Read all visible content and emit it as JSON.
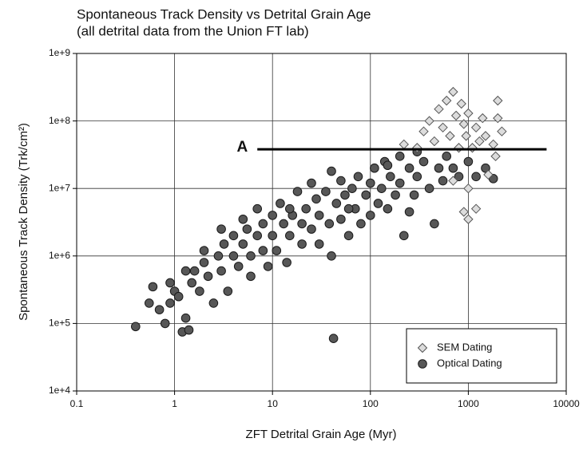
{
  "chart_data": {
    "type": "scatter",
    "title": "Spontaneous Track Density vs Detrital Grain Age",
    "subtitle": "(all detrital data from the Union FT lab)",
    "x_label": "ZFT Detrital Grain Age (Myr)",
    "y_label": "Spontaneous Track Density (Trk/cm²)",
    "xscale": "log",
    "yscale": "log",
    "grid": true,
    "legend": "lower right",
    "xlim": [
      0.1,
      10000
    ],
    "xticks": [
      0.1,
      1,
      10,
      100,
      1000,
      10000
    ],
    "ylim": [
      10000,
      1000000000
    ],
    "yticks": [
      {
        "value": 10000,
        "label": "1e+4"
      },
      {
        "value": 100000,
        "label": "1e+5"
      },
      {
        "value": 1000000,
        "label": "1e+6"
      },
      {
        "value": 10000000,
        "label": "1e+7"
      },
      {
        "value": 100000000,
        "label": "1e+8"
      },
      {
        "value": 1000000000,
        "label": "1e+9"
      }
    ],
    "annotations": [
      {
        "text": "A",
        "x": [
          7,
          6300
        ],
        "y": 38000000
      }
    ],
    "series": [
      {
        "name": "SEM Dating",
        "color": "#dcdcdc",
        "marker": "diamond",
        "x": [
          300,
          350,
          400,
          450,
          500,
          550,
          600,
          650,
          700,
          750,
          800,
          850,
          900,
          950,
          1000,
          1100,
          1200,
          1300,
          1400,
          1500,
          1800,
          2000,
          2200,
          1000,
          900,
          1000,
          1200,
          700,
          1600,
          1900,
          220,
          2000
        ],
        "values": [
          40000000,
          70000000,
          100000000,
          50000000,
          150000000,
          80000000,
          200000000,
          60000000,
          270000000,
          120000000,
          40000000,
          180000000,
          90000000,
          60000000,
          130000000,
          40000000,
          80000000,
          50000000,
          110000000,
          60000000,
          45000000,
          110000000,
          70000000,
          10000000,
          4500000,
          3500000,
          5000000,
          13000000,
          16000000,
          30000000,
          45000000,
          200000000
        ]
      },
      {
        "name": "Optical Dating",
        "color": "#575757",
        "marker": "circle",
        "x": [
          0.4,
          0.55,
          0.6,
          0.7,
          0.8,
          0.9,
          1.0,
          1.1,
          1.2,
          1.3,
          1.4,
          1.5,
          1.6,
          1.8,
          2.0,
          2.2,
          2.5,
          2.8,
          3,
          3.2,
          3.5,
          4,
          4,
          4.5,
          5,
          5.5,
          6,
          6,
          7,
          7,
          8,
          8,
          9,
          10,
          10,
          11,
          12,
          13,
          14,
          15,
          16,
          18,
          20,
          20,
          22,
          25,
          25,
          28,
          30,
          30,
          35,
          38,
          40,
          42,
          45,
          50,
          50,
          55,
          60,
          65,
          70,
          75,
          80,
          90,
          100,
          100,
          110,
          120,
          130,
          140,
          150,
          160,
          180,
          200,
          200,
          220,
          250,
          280,
          300,
          300,
          350,
          400,
          450,
          500,
          550,
          600,
          700,
          800,
          1000,
          1200,
          1500,
          1800,
          2,
          3,
          5,
          15,
          40,
          60,
          150,
          250,
          0.9,
          1.3
        ],
        "values": [
          90000,
          200000,
          350000,
          160000,
          100000,
          200000,
          300000,
          250000,
          75000,
          120000,
          80000,
          400000,
          600000,
          300000,
          800000,
          500000,
          200000,
          1000000,
          600000,
          1500000,
          300000,
          1000000,
          2000000,
          700000,
          1500000,
          2500000,
          500000,
          1000000,
          5000000,
          2000000,
          1200000,
          3000000,
          700000,
          2000000,
          4000000,
          1200000,
          6000000,
          3000000,
          800000,
          2000000,
          4000000,
          9000000,
          1500000,
          3000000,
          5000000,
          12000000,
          2500000,
          7000000,
          1500000,
          4000000,
          9000000,
          3000000,
          1000000,
          60000,
          6000000,
          13000000,
          3500000,
          8000000,
          2000000,
          10000000,
          5000000,
          15000000,
          3000000,
          8000000,
          12000000,
          4000000,
          20000000,
          6000000,
          10000000,
          25000000,
          5000000,
          15000000,
          8000000,
          30000000,
          12000000,
          2000000,
          20000000,
          8000000,
          35000000,
          15000000,
          25000000,
          10000000,
          3000000,
          20000000,
          13000000,
          30000000,
          20000000,
          15000000,
          25000000,
          15000000,
          20000000,
          14000000,
          1200000,
          2500000,
          3500000,
          5000000,
          18000000,
          5000000,
          22000000,
          4500000,
          400000,
          600000
        ]
      }
    ]
  }
}
